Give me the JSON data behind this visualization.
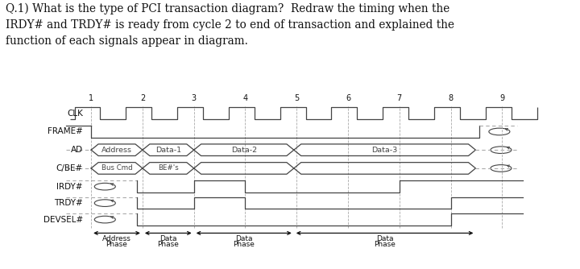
{
  "title": "Q.1) What is the type of PCI transaction diagram?  Redraw the timing when the\nIRDY# and TRDY# is ready from cycle 2 to end of transaction and explained the\nfunction of each signals appear in diagram.",
  "signals": [
    "CLK",
    "FRAME#",
    "AD",
    "C/BE#",
    "IRDY#",
    "TRDY#",
    "DEVSEL#"
  ],
  "bg_color": "#ffffff",
  "sig_color": "#444444",
  "dash_color": "#aaaaaa",
  "text_color": "#111111",
  "title_fontsize": 9.8,
  "label_fontsize": 7.5,
  "cycle_label_fontsize": 7.0,
  "bus_label_fontsize": 6.8,
  "phase_fontsize": 6.5
}
